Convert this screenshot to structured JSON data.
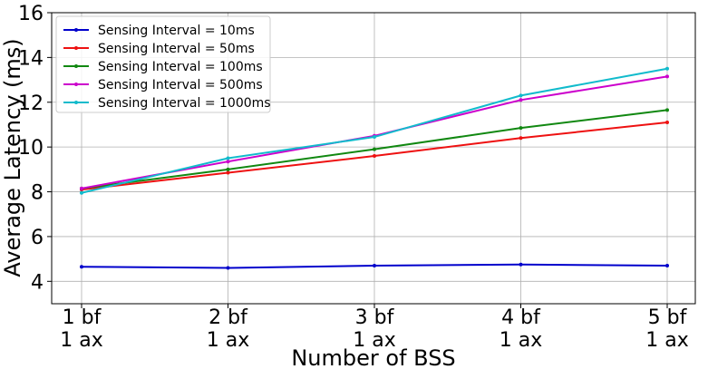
{
  "chart_data": {
    "type": "line",
    "categories": [
      [
        "1 bf",
        "1 ax"
      ],
      [
        "2 bf",
        "1 ax"
      ],
      [
        "3 bf",
        "1 ax"
      ],
      [
        "4 bf",
        "1 ax"
      ],
      [
        "5 bf",
        "1 ax"
      ]
    ],
    "xlabel": "Number of BSS",
    "ylabel": "Average Latency (ms)",
    "ylim": [
      3,
      16
    ],
    "yticks": [
      4,
      6,
      8,
      10,
      12,
      14,
      16
    ],
    "grid": true,
    "legend_position": "top-left",
    "series": [
      {
        "name": "Sensing Interval = 10ms",
        "color": "#0000cc",
        "values": [
          4.65,
          4.6,
          4.7,
          4.75,
          4.7
        ]
      },
      {
        "name": "Sensing Interval = 50ms",
        "color": "#ee1111",
        "values": [
          8.1,
          8.85,
          9.6,
          10.4,
          11.1
        ]
      },
      {
        "name": "Sensing Interval = 100ms",
        "color": "#118811",
        "values": [
          8.15,
          9.0,
          9.9,
          10.85,
          11.65
        ]
      },
      {
        "name": "Sensing Interval = 500ms",
        "color": "#cc00cc",
        "values": [
          8.15,
          9.35,
          10.5,
          12.1,
          13.15
        ]
      },
      {
        "name": "Sensing Interval = 1000ms",
        "color": "#11bbcc",
        "values": [
          7.95,
          9.5,
          10.45,
          12.3,
          13.5
        ]
      }
    ]
  }
}
